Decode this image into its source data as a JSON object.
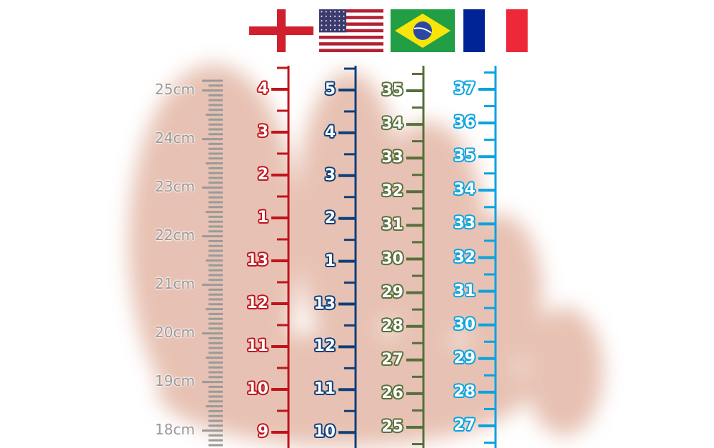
{
  "chart_data": {
    "type": "scale",
    "flags": [
      "england-flag",
      "usa-flag",
      "brazil-flag",
      "france-flag"
    ],
    "cm_scale": {
      "labels": [
        "25cm",
        "24cm",
        "23cm",
        "22cm",
        "21cm",
        "20cm",
        "19cm",
        "18cm"
      ],
      "color": "#999999"
    },
    "series": [
      {
        "flag": "england",
        "color": "#c0141d",
        "labels": [
          "4",
          "3",
          "2",
          "1",
          "13",
          "12",
          "11",
          "10",
          "9"
        ]
      },
      {
        "flag": "usa",
        "color": "#0e3f7a",
        "labels": [
          "5",
          "4",
          "3",
          "2",
          "1",
          "13",
          "12",
          "11",
          "10"
        ]
      },
      {
        "flag": "brazil",
        "color": "#56703a",
        "labels": [
          "35",
          "34",
          "33",
          "32",
          "31",
          "30",
          "29",
          "28",
          "27",
          "26",
          "25"
        ]
      },
      {
        "flag": "france",
        "color": "#0aa3e0",
        "labels": [
          "37",
          "36",
          "35",
          "34",
          "33",
          "32",
          "31",
          "30",
          "29",
          "28",
          "27"
        ]
      }
    ]
  }
}
